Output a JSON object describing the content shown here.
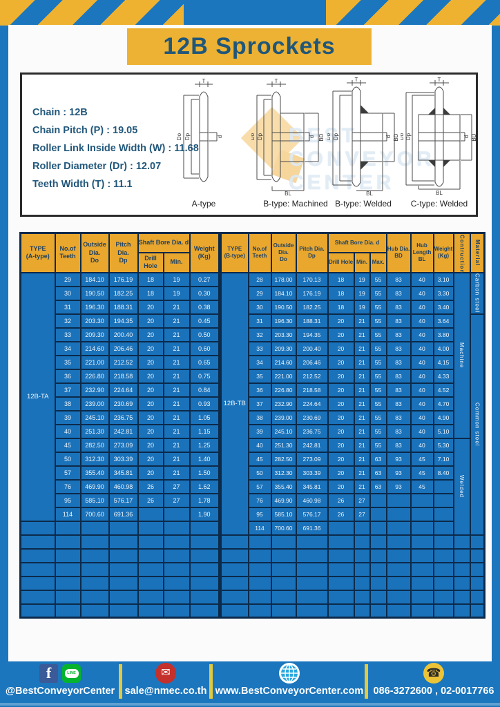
{
  "title": "12B Sprockets",
  "specs": [
    "Chain  :  12B",
    "Chain Pitch (P)  :  19.05",
    "Roller Link Inside Width (W) : 11.68",
    "Roller Diameter (Dr)  : 12.07",
    "Teeth Width (T)  :  11.1"
  ],
  "diagram_labels": [
    "A-type",
    "B-type: Machined",
    "B-type: Welded",
    "C-type: Welded"
  ],
  "dims": {
    "t": "T",
    "dia_o": "Do",
    "dia_p": "Dp",
    "d": "d",
    "bd": "BD",
    "bl": "BL"
  },
  "watermark": [
    "BEST",
    "CONVEYOR",
    "CENTER"
  ],
  "tables": {
    "left": {
      "type_label": "12B-TA",
      "header": {
        "type": "TYPE\n(A-type)",
        "teeth": "No.of\nTeeth",
        "outside": "Outside\nDia.\nDo",
        "pitch": "Pitch Dia.\nDp",
        "shaft": "Shaft Bore Dia. d",
        "drill": "Drill Hole",
        "min": "Min.",
        "weight": "Weight\n(Kg)"
      },
      "rows": [
        [
          "29",
          "184.10",
          "176.19",
          "18",
          "19",
          "0.27"
        ],
        [
          "30",
          "190.50",
          "182.25",
          "18",
          "19",
          "0.30"
        ],
        [
          "31",
          "196.30",
          "188.31",
          "20",
          "21",
          "0.38"
        ],
        [
          "32",
          "203.30",
          "194.35",
          "20",
          "21",
          "0.45"
        ],
        [
          "33",
          "209.30",
          "200.40",
          "20",
          "21",
          "0.50"
        ],
        [
          "34",
          "214.60",
          "206.46",
          "20",
          "21",
          "0.60"
        ],
        [
          "35",
          "221.00",
          "212.52",
          "20",
          "21",
          "0.65"
        ],
        [
          "36",
          "226.80",
          "218.58",
          "20",
          "21",
          "0.75"
        ],
        [
          "37",
          "232.90",
          "224.64",
          "20",
          "21",
          "0.84"
        ],
        [
          "38",
          "239.00",
          "230.69",
          "20",
          "21",
          "0.93"
        ],
        [
          "39",
          "245.10",
          "236.75",
          "20",
          "21",
          "1.05"
        ],
        [
          "40",
          "251.30",
          "242.81",
          "20",
          "21",
          "1.15"
        ],
        [
          "45",
          "282.50",
          "273.09",
          "20",
          "21",
          "1.25"
        ],
        [
          "50",
          "312.30",
          "303.39",
          "20",
          "21",
          "1.40"
        ],
        [
          "57",
          "355.40",
          "345.81",
          "20",
          "21",
          "1.50"
        ],
        [
          "76",
          "469.90",
          "460.98",
          "26",
          "27",
          "1.62"
        ],
        [
          "95",
          "585.10",
          "576.17",
          "26",
          "27",
          "1.78"
        ],
        [
          "114",
          "700.60",
          "691.36",
          "",
          "",
          "1.90"
        ]
      ],
      "empty_rows": 7
    },
    "right": {
      "type_label": "12B-TB",
      "header": {
        "type": "TYPE\n(B-type)",
        "teeth": "No.of\nTeeth",
        "outside": "Outside\nDia.\nDo",
        "pitch": "Pitch Dia.\nDp",
        "shaft": "Shaft Bore Dia. d",
        "drill": "Drill Hole",
        "min": "Min.",
        "max": "Max.",
        "hub_dia": "Hub Dia.\nBD",
        "hub_len": "Hub\nLength\nBL",
        "weight": "Weight\n(Kg)",
        "construction": "Contruction",
        "material": "Material"
      },
      "rows": [
        [
          "28",
          "178.00",
          "170.13",
          "18",
          "19",
          "55",
          "83",
          "40",
          "3.10"
        ],
        [
          "29",
          "184.10",
          "176.19",
          "18",
          "19",
          "55",
          "83",
          "40",
          "3.30"
        ],
        [
          "30",
          "190.50",
          "182.25",
          "18",
          "19",
          "55",
          "83",
          "40",
          "3.40"
        ],
        [
          "31",
          "196.30",
          "188.31",
          "20",
          "21",
          "55",
          "83",
          "40",
          "3.64"
        ],
        [
          "32",
          "203.30",
          "194.35",
          "20",
          "21",
          "55",
          "83",
          "40",
          "3.80"
        ],
        [
          "33",
          "209.30",
          "200.40",
          "20",
          "21",
          "55",
          "83",
          "40",
          "4.00"
        ],
        [
          "34",
          "214.60",
          "206.46",
          "20",
          "21",
          "55",
          "83",
          "40",
          "4.15"
        ],
        [
          "35",
          "221.00",
          "212.52",
          "20",
          "21",
          "55",
          "83",
          "40",
          "4.33"
        ],
        [
          "36",
          "226.80",
          "218.58",
          "20",
          "21",
          "55",
          "83",
          "40",
          "4.52"
        ],
        [
          "37",
          "232.90",
          "224.64",
          "20",
          "21",
          "55",
          "83",
          "40",
          "4.70"
        ],
        [
          "38",
          "239.00",
          "230.69",
          "20",
          "21",
          "55",
          "83",
          "40",
          "4.90"
        ],
        [
          "39",
          "245.10",
          "236.75",
          "20",
          "21",
          "55",
          "83",
          "40",
          "5.10"
        ],
        [
          "40",
          "251.30",
          "242.81",
          "20",
          "21",
          "55",
          "83",
          "40",
          "5.30"
        ],
        [
          "45",
          "282.50",
          "273.09",
          "20",
          "21",
          "63",
          "93",
          "45",
          "7.10"
        ],
        [
          "50",
          "312.30",
          "303.39",
          "20",
          "21",
          "63",
          "93",
          "45",
          "8.40"
        ],
        [
          "57",
          "355.40",
          "345.81",
          "20",
          "21",
          "63",
          "93",
          "45",
          ""
        ],
        [
          "76",
          "469.90",
          "460.98",
          "26",
          "27",
          "",
          "",
          "",
          ""
        ],
        [
          "95",
          "585.10",
          "576.17",
          "26",
          "27",
          "",
          "",
          "",
          ""
        ],
        [
          "114",
          "700.60",
          "691.36",
          "",
          "",
          "",
          "",
          "",
          ""
        ]
      ],
      "construction_spans": [
        {
          "label": "Machine",
          "rows": 12
        },
        {
          "label": "Welded",
          "rows": 7
        }
      ],
      "material_spans": [
        {
          "label": "Carbon steel",
          "rows": 3
        },
        {
          "label": "Common  steel",
          "rows": 16
        }
      ],
      "empty_rows": 6
    }
  },
  "footer": {
    "social_text": "@BestConveyorCenter",
    "email_text": "sale@nmec.co.th",
    "web_text": "www.BestConveyorCenter.com",
    "phone_text": "086-3272600 , 02-0017766",
    "fb_letter": "f",
    "line_label": "LINE",
    "mail_glyph": "✉",
    "phone_glyph": "☎"
  },
  "colors": {
    "brand_blue": "#1b76bd",
    "table_blue": "#1a72ba",
    "grid_navy": "#0c2a4a",
    "banner_yellow": "#edb233",
    "header_yellow": "#e9a72e",
    "navy_text": "#22587c"
  }
}
